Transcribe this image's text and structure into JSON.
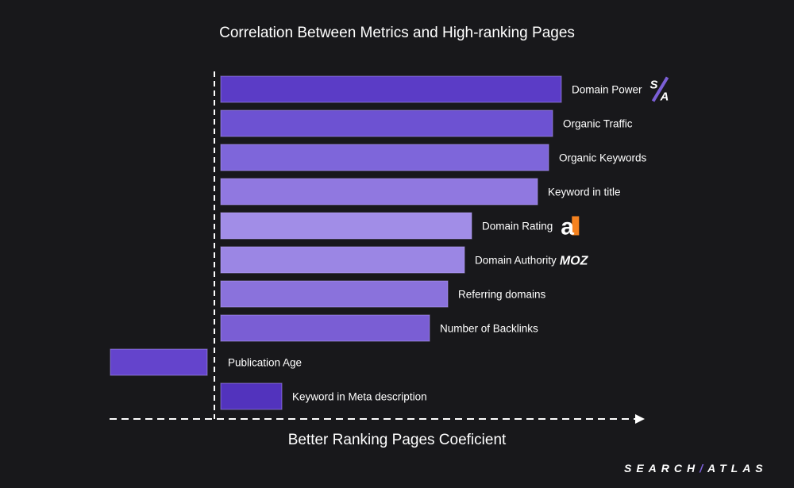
{
  "chart_data": {
    "type": "bar",
    "orientation": "horizontal",
    "title": "Correlation Between Metrics and High-ranking Pages",
    "xlabel": "Better Ranking Pages Coeficient",
    "ylabel": "",
    "grid": false,
    "categories": [
      "Domain Power",
      "Organic Traffic",
      "Organic Keywords",
      "Keyword in title",
      "Domain Rating",
      "Domain Authority",
      "Referring domains",
      "Number of Backlinks",
      "Publication Age",
      "Keyword in Meta description"
    ],
    "values": [
      0.429,
      0.418,
      0.413,
      0.399,
      0.316,
      0.307,
      0.286,
      0.263,
      -0.122,
      0.077
    ],
    "colors": [
      "#5b3cc6",
      "#6d52d2",
      "#7e66da",
      "#9078e0",
      "#a18de7",
      "#9b86e4",
      "#8a72dc",
      "#7a5ed4",
      "#6444cc",
      "#5233bd"
    ],
    "logos": {
      "0": "search-atlas-logo",
      "4": "ahrefs-logo",
      "5": "moz-logo"
    }
  },
  "logos": {
    "sa": "S/A",
    "ahrefs": "a",
    "moz": "MOZ"
  },
  "brand": {
    "left": "SEARCH",
    "sep": "/",
    "right": "ATLAS"
  }
}
